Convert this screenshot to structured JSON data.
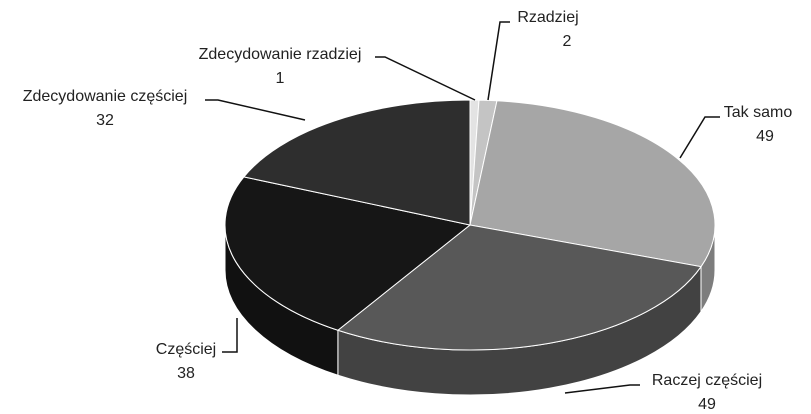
{
  "chart_data": {
    "type": "pie3d",
    "categories": [
      "Zdecydowanie rzadziej",
      "Rzadziej",
      "Tak samo",
      "Raczej częściej",
      "Częściej",
      "Zdecydowanie częściej"
    ],
    "values": [
      1,
      2,
      49,
      49,
      38,
      32
    ],
    "colors": [
      "#e3e3e3",
      "#c4c4c4",
      "#a6a6a6",
      "#585858",
      "#161616",
      "#2e2e2e"
    ]
  }
}
